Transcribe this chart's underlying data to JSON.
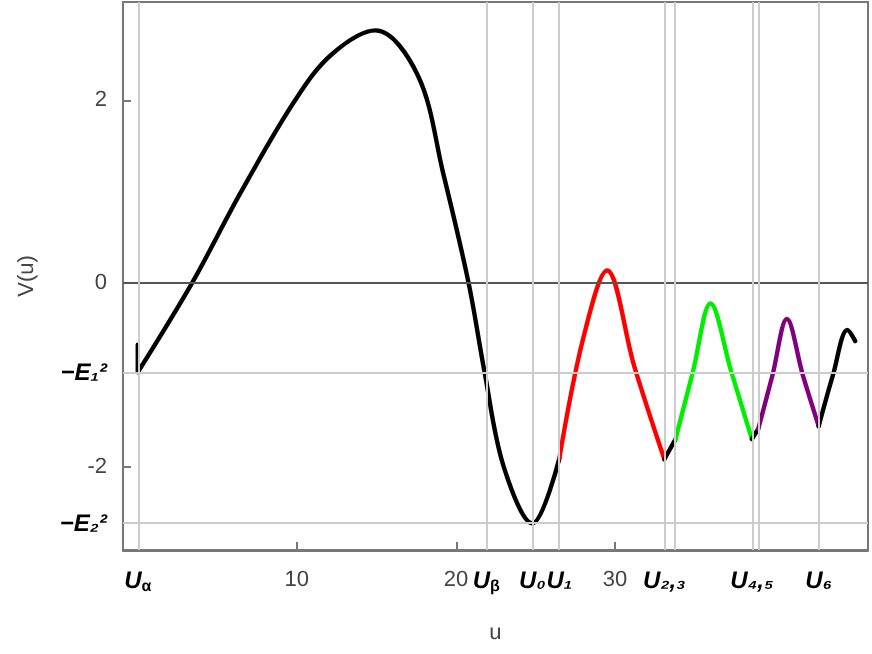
{
  "chart_data": {
    "type": "line",
    "xlabel": "u",
    "ylabel": "V(u)",
    "xlim": [
      -0.93,
      45.9
    ],
    "ylim": [
      -2.91,
      3.07
    ],
    "xticks": [
      {
        "value": 0,
        "label": "U$_{α}$"
      },
      10,
      20,
      {
        "value": 21.9,
        "label": "U$_{β}$"
      },
      {
        "value": 24.8,
        "label": "U₀"
      },
      {
        "value": 26.5,
        "label": "U₁"
      },
      30,
      {
        "value": 33.1,
        "label": "U₂,₃"
      },
      {
        "value": 38.6,
        "label": "U₄,₅"
      },
      {
        "value": 42.8,
        "label": "U₆"
      }
    ],
    "yticks": [
      2,
      0,
      {
        "value": -0.97,
        "label": "−E₁²"
      },
      -2,
      {
        "value": -2.62,
        "label": "−E₂²"
      }
    ],
    "grid": false,
    "marker": "none",
    "line_style": "solid",
    "ref_lines": [
      {
        "axis": "y",
        "value": 0,
        "color": "#555555"
      },
      {
        "axis": "y",
        "value": -0.97,
        "color": "#cccccc"
      },
      {
        "axis": "y",
        "value": -2.62,
        "color": "#cccccc"
      },
      {
        "axis": "x",
        "value": 0,
        "color": "#cccccc"
      },
      {
        "axis": "x",
        "value": 21.9,
        "color": "#cccccc"
      },
      {
        "axis": "x",
        "value": 24.8,
        "color": "#cccccc"
      },
      {
        "axis": "x",
        "value": 26.5,
        "color": "#cccccc"
      },
      {
        "axis": "x",
        "value": 33.1,
        "color": "#cccccc"
      },
      {
        "axis": "x",
        "value": 33.8,
        "color": "#cccccc"
      },
      {
        "axis": "x",
        "value": 38.6,
        "color": "#cccccc"
      },
      {
        "axis": "x",
        "value": 39.0,
        "color": "#cccccc"
      },
      {
        "axis": "x",
        "value": 42.8,
        "color": "#cccccc"
      }
    ],
    "series": [
      {
        "color": "#000000",
        "x": [
          0,
          0,
          3.4,
          6.5,
          9.9,
          12.2,
          14.95,
          17.6,
          19.2,
          20.8,
          21.8,
          23.0,
          24.8,
          26.5
        ],
        "values": [
          -0.67,
          -0.97,
          0,
          1.0,
          2.0,
          2.5,
          2.76,
          2.27,
          1.2,
          0,
          -0.97,
          -2.0,
          -2.62,
          -1.91
        ]
      },
      {
        "color": "#ff0000",
        "x": [
          26.5,
          28.0,
          29.5,
          31.2,
          33.1
        ],
        "values": [
          -1.91,
          -0.6,
          0.14,
          -0.9,
          -1.92
        ]
      },
      {
        "color": "#000000",
        "x": [
          33.1,
          33.8
        ],
        "values": [
          -1.92,
          -1.7
        ]
      },
      {
        "color": "#00ee00",
        "x": [
          33.8,
          34.9,
          36.0,
          37.3,
          38.6
        ],
        "values": [
          -1.7,
          -0.96,
          -0.22,
          -0.96,
          -1.7
        ]
      },
      {
        "color": "#000000",
        "x": [
          38.6,
          39.0
        ],
        "values": [
          -1.7,
          -1.59
        ]
      },
      {
        "color": "#800080",
        "x": [
          39.0,
          39.9,
          40.8,
          41.8,
          42.8
        ],
        "values": [
          -1.59,
          -1.0,
          -0.39,
          -1.0,
          -1.56
        ]
      },
      {
        "color": "#000000",
        "x": [
          42.8,
          43.7,
          44.6,
          45.1
        ],
        "values": [
          -1.56,
          -1.0,
          -0.51,
          -0.63
        ]
      }
    ]
  }
}
